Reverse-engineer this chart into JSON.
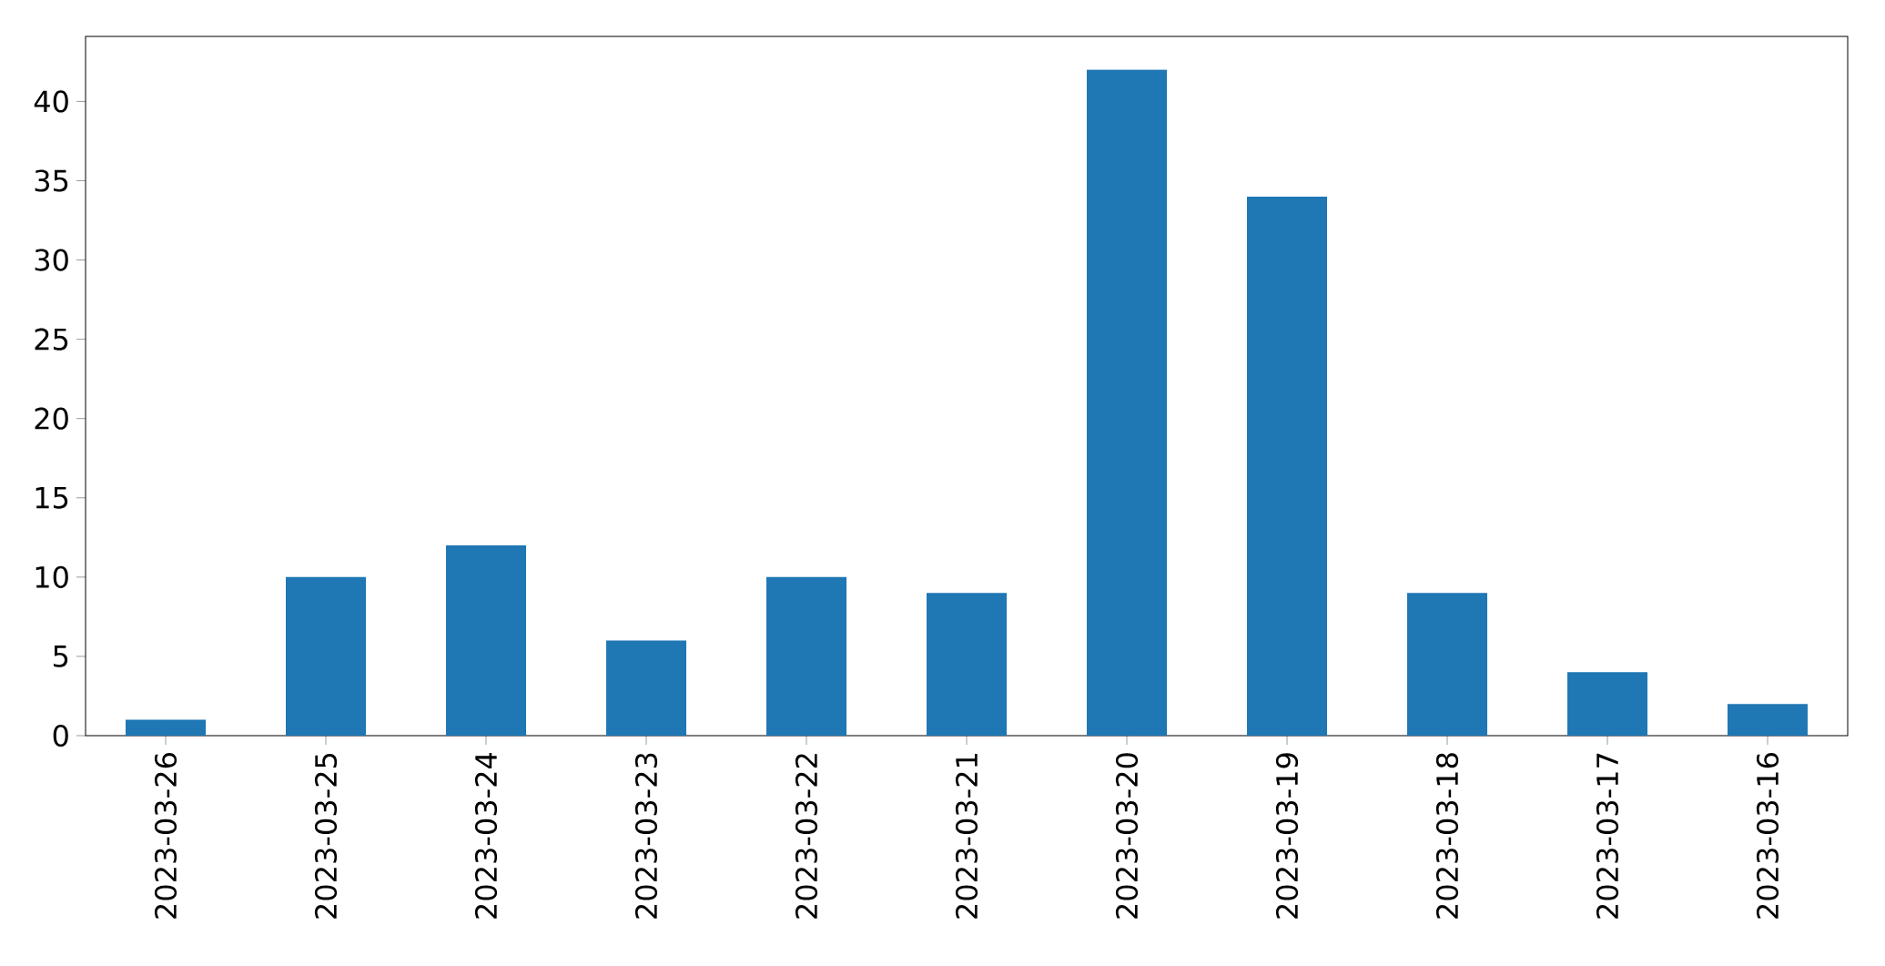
{
  "chart_data": {
    "type": "bar",
    "categories": [
      "2023-03-26",
      "2023-03-25",
      "2023-03-24",
      "2023-03-23",
      "2023-03-22",
      "2023-03-21",
      "2023-03-20",
      "2023-03-19",
      "2023-03-18",
      "2023-03-17",
      "2023-03-16"
    ],
    "values": [
      1,
      10,
      12,
      6,
      10,
      9,
      42,
      34,
      9,
      4,
      2
    ],
    "color": "#1f77b4",
    "ylim": [
      0,
      44.1
    ],
    "yticks": [
      0,
      5,
      10,
      15,
      20,
      25,
      30,
      35,
      40
    ]
  }
}
